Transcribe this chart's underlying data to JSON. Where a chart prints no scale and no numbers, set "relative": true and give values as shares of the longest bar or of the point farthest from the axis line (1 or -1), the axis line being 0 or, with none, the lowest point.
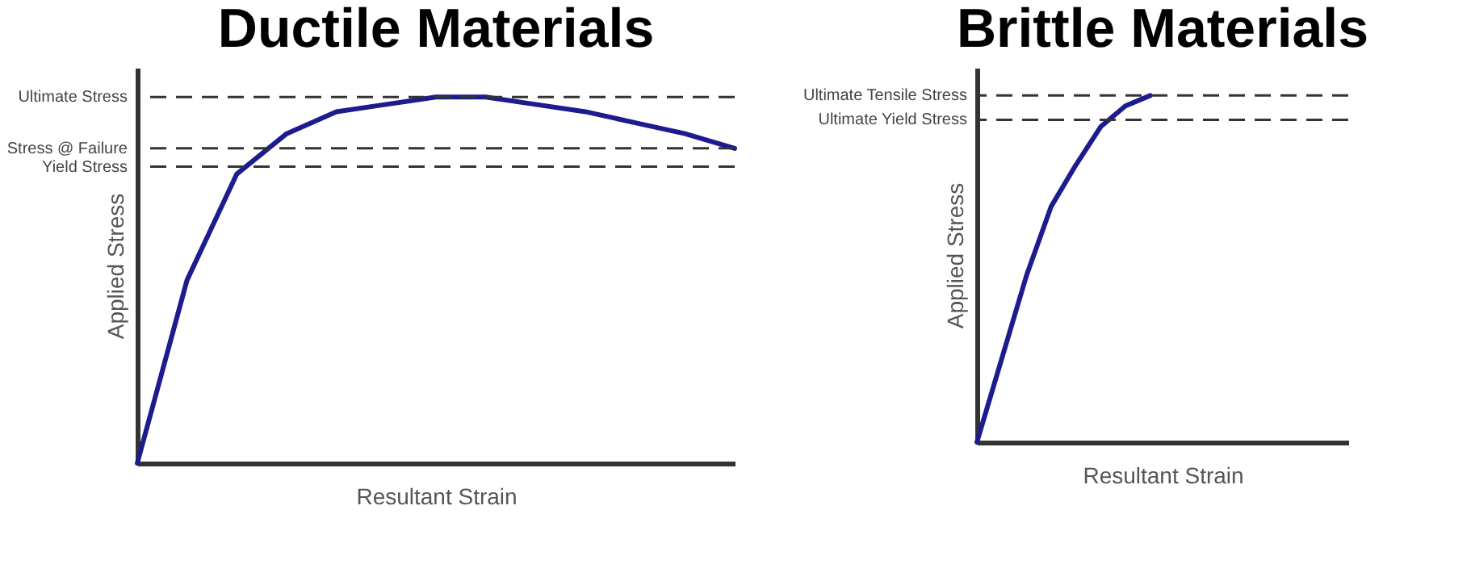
{
  "chart_data": [
    {
      "type": "line",
      "title": "Ductile Materials",
      "xlabel": "Resultant Strain",
      "ylabel": "Applied Stress",
      "relative": true,
      "line_style": "solid",
      "marker": "none",
      "categories": [
        null,
        null,
        null,
        null,
        null,
        null,
        null,
        null,
        null,
        null,
        null,
        null,
        null
      ],
      "series": [
        {
          "color": "#1c1c8f",
          "values": [
            0,
            0.5,
            0.79,
            0.9,
            0.96,
            0.98,
            1.0,
            1.0,
            0.98,
            0.96,
            0.93,
            0.9,
            0.86
          ]
        }
      ],
      "ref_lines": [
        {
          "axis": "y",
          "value": 1.0,
          "label": "Ultimate Stress",
          "line_style": "dashed"
        },
        {
          "axis": "y",
          "value": 0.86,
          "label": "Stress @ Failure",
          "line_style": "dashed"
        },
        {
          "axis": "y",
          "value": 0.81,
          "label": "Yield Stress",
          "line_style": "dashed"
        }
      ]
    },
    {
      "type": "line",
      "title": "Brittle Materials",
      "xlabel": "Resultant Strain",
      "ylabel": "Applied Stress",
      "relative": true,
      "line_style": "solid",
      "marker": "none",
      "categories": [
        null,
        null,
        null,
        null,
        null,
        null,
        null,
        null,
        null,
        null,
        null,
        null,
        null,
        null,
        null,
        null
      ],
      "series": [
        {
          "color": "#1c1c8f",
          "values": [
            0,
            0.24,
            0.48,
            0.68,
            0.8,
            0.91,
            0.97,
            1.0,
            null,
            null,
            null,
            null,
            null,
            null,
            null,
            null
          ]
        }
      ],
      "ref_lines": [
        {
          "axis": "y",
          "value": 1.0,
          "label": "Ultimate Tensile Stress",
          "line_style": "dashed"
        },
        {
          "axis": "y",
          "value": 0.93,
          "label": "Ultimate Yield Stress",
          "line_style": "dashed"
        }
      ]
    }
  ]
}
